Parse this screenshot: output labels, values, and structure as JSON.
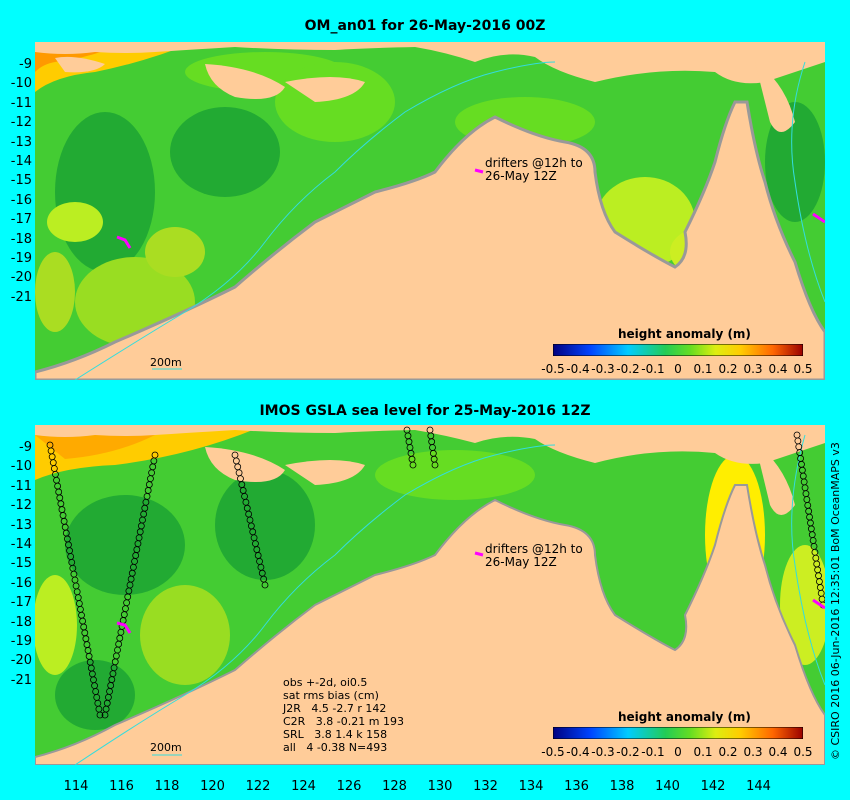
{
  "top_title": "OM_an01 for 26-May-2016 00Z",
  "bottom_title": "IMOS GSLA sea level  for 25-May-2016 12Z",
  "y_ticks": [
    "-9",
    "-10",
    "-11",
    "-12",
    "-13",
    "-14",
    "-15",
    "-16",
    "-17",
    "-18",
    "-19",
    "-20",
    "-21"
  ],
  "x_ticks": [
    "114",
    "116",
    "118",
    "120",
    "122",
    "124",
    "126",
    "128",
    "130",
    "132",
    "134",
    "136",
    "138",
    "140",
    "142",
    "144"
  ],
  "colorbar": {
    "title": "height anomaly (m)",
    "ticks": [
      "-0.5",
      "-0.4",
      "-0.3",
      "-0.2",
      "-0.1",
      "0",
      "0.1",
      "0.2",
      "0.3",
      "0.4",
      "0.5"
    ]
  },
  "drifters_label_1": "drifters @12h to",
  "drifters_label_2": "26-May 12Z",
  "scale_label": "200m",
  "stats": {
    "line1": "obs +-2d, oi0.5",
    "line2": "sat rms bias (cm)",
    "line3": "J2R   4.5 -2.7 r 142",
    "line4": "C2R   3.8 -0.21 m 193",
    "line5": "SRL   3.8 1.4 k 158",
    "line6": "all   4 -0.38 N=493"
  },
  "credit": "© CSIRO 2016  06-Jun-2016 12:35:01 BoM OceanMAPS v3",
  "colors": {
    "background": "#00ffff",
    "land": "#ffcc99",
    "shelf": "#999999",
    "ocean_mid": "#33cc33",
    "drifter": "#ff00ff"
  }
}
